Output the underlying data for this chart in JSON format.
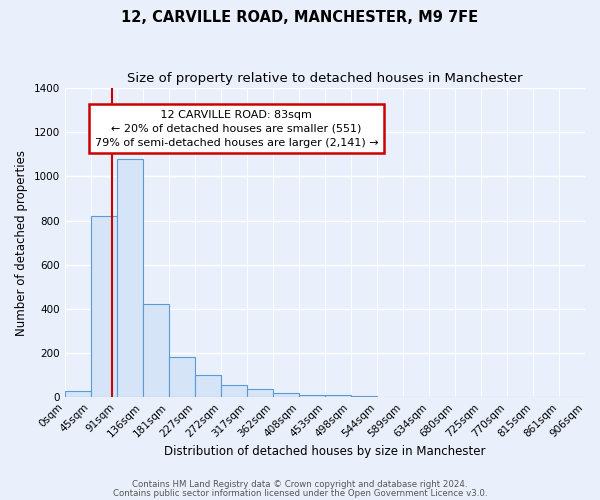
{
  "title_line1": "12, CARVILLE ROAD, MANCHESTER, M9 7FE",
  "title_line2": "Size of property relative to detached houses in Manchester",
  "xlabel": "Distribution of detached houses by size in Manchester",
  "ylabel": "Number of detached properties",
  "bin_edges": [
    0,
    45,
    91,
    136,
    181,
    227,
    272,
    317,
    362,
    408,
    453,
    498,
    544,
    589,
    634,
    680,
    725,
    770,
    815,
    861,
    906
  ],
  "bar_heights": [
    30,
    820,
    1080,
    420,
    180,
    100,
    55,
    38,
    18,
    12,
    8,
    5,
    0,
    0,
    0,
    0,
    0,
    0,
    0,
    0
  ],
  "bar_facecolor": "#d6e4f7",
  "bar_edgecolor": "#5b9bd5",
  "property_size": 83,
  "property_label": "12 CARVILLE ROAD: 83sqm",
  "smaller_pct": "20% of detached houses are smaller (551)",
  "larger_pct": "79% of semi-detached houses are larger (2,141)",
  "vline_color": "#cc0000",
  "annotation_boxcolor": "white",
  "annotation_edgecolor": "#cc0000",
  "ylim": [
    0,
    1400
  ],
  "yticks": [
    0,
    200,
    400,
    600,
    800,
    1000,
    1200,
    1400
  ],
  "bg_color": "#eaf0fb",
  "grid_color": "#ffffff",
  "footer_line1": "Contains HM Land Registry data © Crown copyright and database right 2024.",
  "footer_line2": "Contains public sector information licensed under the Open Government Licence v3.0.",
  "title_fontsize": 10.5,
  "subtitle_fontsize": 9.5,
  "axis_label_fontsize": 8.5,
  "tick_fontsize": 7.5,
  "annotation_fontsize": 8,
  "footer_fontsize": 6.2
}
